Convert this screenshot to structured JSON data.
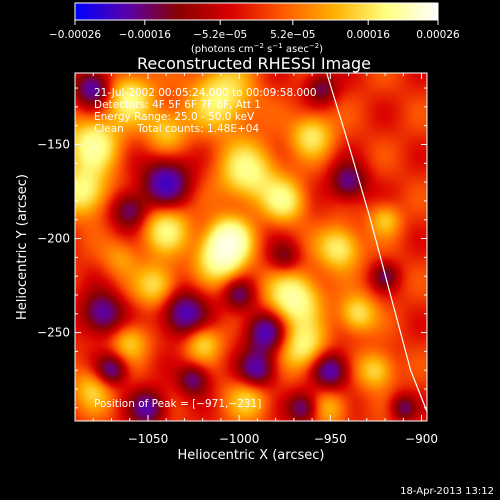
{
  "chart_data": {
    "type": "heatmap",
    "title": "Reconstructed RHESSI Image",
    "xlabel": "Heliocentric X (arcsec)",
    "ylabel": "Heliocentric Y (arcsec)",
    "xlim": [
      -1090,
      -897
    ],
    "ylim": [
      -297,
      -112
    ],
    "x_ticks": [
      -1050,
      -1000,
      -950,
      -900
    ],
    "x_tick_labels": [
      "−1050",
      "−1000",
      "−950",
      "−900"
    ],
    "y_ticks": [
      -150,
      -200,
      -250
    ],
    "y_tick_labels": [
      "−150",
      "−200",
      "−250"
    ],
    "colorbar": {
      "range": [
        -0.00026,
        0.00026
      ],
      "ticks": [
        -0.00026,
        -0.00016,
        -5.2e-05,
        5.2e-05,
        0.00016,
        0.00026
      ],
      "tick_labels": [
        "−0.00026",
        "−0.00016",
        "−5.2e−05",
        "5.2e−05",
        "0.00016",
        "0.00026"
      ],
      "unit_main": "(photons cm",
      "unit_sup1": "−2",
      "unit_mid": " s",
      "unit_sup2": "−1",
      "unit_mid2": " asec",
      "unit_sup3": "−2",
      "unit_end": ")",
      "colormap": [
        "#0000ff",
        "#5a00aa",
        "#8a0000",
        "#d90000",
        "#ff5a00",
        "#ffb000",
        "#ffff80",
        "#ffffff"
      ]
    },
    "annotations": [
      "21-Jul-2002 00:05:24.000 to 00:09:58.000",
      "Detectors: 4F 5F 6F 7F 8F, Att 1",
      "Energy Range: 25.0 - 50.0 keV",
      "Clean    Total counts: 1.48E+04"
    ],
    "peak_label": "Position of Peak = [−971,−231]",
    "peak": [
      -971,
      -231
    ],
    "limb_curve": [
      [
        -952,
        -112
      ],
      [
        -940,
        -150
      ],
      [
        -928,
        -190
      ],
      [
        -917,
        -230
      ],
      [
        -906,
        -270
      ],
      [
        -897,
        -292
      ]
    ],
    "grid": false,
    "blobs": [
      [
        -1080,
        -150,
        10,
        0.9
      ],
      [
        -1085,
        -175,
        9,
        0.85
      ],
      [
        -1060,
        -125,
        9,
        0.8
      ],
      [
        -1040,
        -142,
        8,
        0.55
      ],
      [
        -1010,
        -125,
        12,
        0.8
      ],
      [
        -995,
        -165,
        11,
        0.85
      ],
      [
        -1005,
        -200,
        8,
        0.95
      ],
      [
        -1010,
        -210,
        9,
        1.0
      ],
      [
        -1040,
        -195,
        9,
        0.75
      ],
      [
        -1045,
        -225,
        8,
        0.7
      ],
      [
        -1020,
        -255,
        7,
        0.65
      ],
      [
        -1060,
        -255,
        7,
        0.55
      ],
      [
        -1080,
        -280,
        8,
        0.55
      ],
      [
        -970,
        -232,
        10,
        1.0
      ],
      [
        -965,
        -258,
        9,
        0.8
      ],
      [
        -975,
        -180,
        8,
        0.75
      ],
      [
        -960,
        -145,
        8,
        0.7
      ],
      [
        -945,
        -205,
        8,
        0.8
      ],
      [
        -935,
        -240,
        7,
        0.7
      ],
      [
        -925,
        -270,
        7,
        0.65
      ],
      [
        -920,
        -190,
        6,
        0.5
      ],
      [
        -995,
        -285,
        8,
        0.55
      ],
      [
        -950,
        -290,
        7,
        0.45
      ],
      [
        -1065,
        -210,
        7,
        0.35
      ],
      [
        -1080,
        -120,
        7,
        -0.9
      ],
      [
        -1040,
        -170,
        9,
        -0.95
      ],
      [
        -1060,
        -185,
        7,
        -0.7
      ],
      [
        -1030,
        -240,
        9,
        -0.9
      ],
      [
        -1075,
        -240,
        8,
        -0.85
      ],
      [
        -1070,
        -270,
        6,
        -0.8
      ],
      [
        -985,
        -250,
        8,
        -0.9
      ],
      [
        -990,
        -270,
        7,
        -0.85
      ],
      [
        -950,
        -270,
        7,
        -0.9
      ],
      [
        -1000,
        -230,
        6,
        -0.6
      ],
      [
        -975,
        -210,
        6,
        -0.5
      ],
      [
        -940,
        -170,
        7,
        -0.75
      ],
      [
        -955,
        -120,
        6,
        -0.6
      ],
      [
        -1025,
        -275,
        6,
        -0.7
      ],
      [
        -920,
        -220,
        5,
        -0.5
      ],
      [
        -965,
        -290,
        6,
        -0.75
      ],
      [
        -1050,
        -290,
        7,
        -0.8
      ],
      [
        -910,
        -290,
        5,
        -0.6
      ]
    ]
  },
  "footer": {
    "timestamp": "18-Apr-2013 13:12"
  }
}
